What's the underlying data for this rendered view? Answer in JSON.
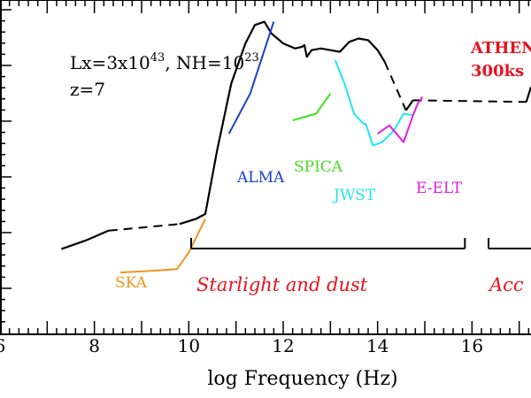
{
  "chart_data": {
    "type": "line",
    "title": "",
    "xlabel": "log Frequency (Hz)",
    "ylabel": "",
    "xlim": [
      6,
      17.25
    ],
    "ylim": [
      0,
      1
    ],
    "x_ticks": [
      "6",
      "8",
      "10",
      "12",
      "14",
      "16"
    ],
    "grid": false,
    "annotations": {
      "params_prefix_lx": "Lx=3x10",
      "params_lx_exp": "43",
      "params_sep": ", NH=10",
      "params_nh_exp": "23",
      "redshift": "z=7",
      "athena_line1": "ATHEN",
      "athena_line2": "300ks",
      "region_starlight": "Starlight and dust",
      "region_accretion": "Acc"
    },
    "sed": {
      "name": "",
      "solid_segments": [
        [
          [
            7.3,
            0.255
          ],
          [
            7.8,
            0.28
          ],
          [
            8.3,
            0.31
          ]
        ],
        [
          [
            9.8,
            0.33
          ],
          [
            10.15,
            0.345
          ],
          [
            10.35,
            0.36
          ],
          [
            10.6,
            0.55
          ],
          [
            10.9,
            0.75
          ],
          [
            11.2,
            0.87
          ],
          [
            11.4,
            0.925
          ],
          [
            11.6,
            0.935
          ],
          [
            11.75,
            0.9
          ],
          [
            12.0,
            0.87
          ],
          [
            12.25,
            0.855
          ],
          [
            12.4,
            0.86
          ],
          [
            12.45,
            0.865
          ],
          [
            12.5,
            0.83
          ],
          [
            12.6,
            0.85
          ],
          [
            12.8,
            0.855
          ],
          [
            13.0,
            0.85
          ],
          [
            13.2,
            0.845
          ],
          [
            13.4,
            0.875
          ],
          [
            13.6,
            0.885
          ],
          [
            13.8,
            0.88
          ],
          [
            14.0,
            0.85
          ],
          [
            14.15,
            0.815
          ]
        ],
        [
          [
            14.6,
            0.67
          ],
          [
            14.75,
            0.7
          ]
        ],
        [
          [
            17.15,
            0.695
          ],
          [
            17.25,
            0.74
          ]
        ]
      ],
      "dashed_segments": [
        [
          [
            8.3,
            0.31
          ],
          [
            9.8,
            0.33
          ]
        ],
        [
          [
            14.15,
            0.815
          ],
          [
            14.6,
            0.67
          ]
        ],
        [
          [
            14.75,
            0.7
          ],
          [
            17.15,
            0.695
          ]
        ]
      ]
    },
    "series": [
      {
        "name": "SKA",
        "color": "#f0921e",
        "points": [
          [
            8.55,
            0.185
          ],
          [
            9.2,
            0.19
          ],
          [
            9.75,
            0.195
          ],
          [
            10.0,
            0.245
          ],
          [
            10.35,
            0.345
          ]
        ]
      },
      {
        "name": "ALMA",
        "color": "#1a3fcf",
        "points": [
          [
            10.85,
            0.6
          ],
          [
            11.3,
            0.72
          ],
          [
            11.8,
            0.935
          ]
        ]
      },
      {
        "name": "SPICA",
        "color": "#44dd22",
        "points": [
          [
            12.2,
            0.64
          ],
          [
            12.7,
            0.66
          ],
          [
            13.0,
            0.72
          ]
        ]
      },
      {
        "name": "JWST",
        "color": "#1ee6ee",
        "points": [
          [
            13.1,
            0.82
          ],
          [
            13.3,
            0.75
          ],
          [
            13.5,
            0.66
          ],
          [
            13.7,
            0.63
          ],
          [
            13.75,
            0.63
          ],
          [
            13.9,
            0.565
          ],
          [
            14.1,
            0.575
          ],
          [
            14.35,
            0.61
          ],
          [
            14.55,
            0.66
          ],
          [
            14.75,
            0.655
          ]
        ]
      },
      {
        "name": "E-ELT",
        "color": "#e020e0",
        "points": [
          [
            14.0,
            0.6
          ],
          [
            14.25,
            0.625
          ],
          [
            14.55,
            0.575
          ],
          [
            14.75,
            0.655
          ],
          [
            14.85,
            0.69
          ],
          [
            14.95,
            0.71
          ]
        ]
      }
    ],
    "brackets": [
      {
        "label_key": "region_starlight",
        "x_start": 10.05,
        "x_end": 15.85
      },
      {
        "label_key": "region_accretion",
        "x_start": 16.35,
        "x_end": 17.25
      }
    ],
    "colors": {
      "axis": "#000000",
      "sed": "#000000",
      "region_text": "#e8121e",
      "athena_text": "#e8121e"
    }
  }
}
